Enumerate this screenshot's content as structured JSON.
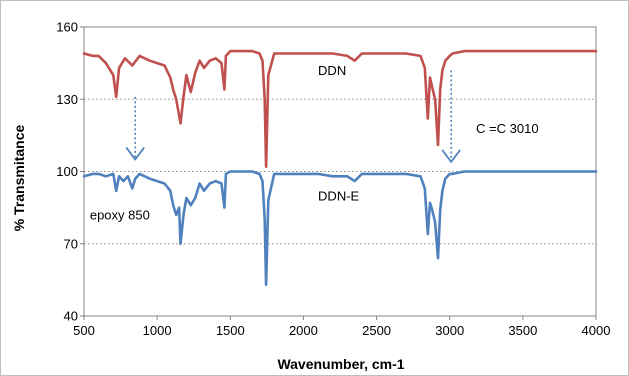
{
  "chart_data": {
    "type": "line",
    "title": "",
    "xlabel": "Wavenumber, cm-1",
    "ylabel": "% Transmitance",
    "xlim": [
      500,
      4000
    ],
    "ylim": [
      40,
      160
    ],
    "x_ticks": [
      500,
      1000,
      1500,
      2000,
      2500,
      3000,
      3500,
      4000
    ],
    "y_ticks": [
      40,
      70,
      100,
      130,
      160
    ],
    "grid": "horizontal dotted",
    "legend": "none",
    "series": [
      {
        "name": "DDN",
        "color": "#c0504d",
        "x": [
          500,
          560,
          600,
          650,
          700,
          720,
          740,
          780,
          830,
          880,
          950,
          1000,
          1050,
          1090,
          1110,
          1130,
          1160,
          1180,
          1200,
          1230,
          1260,
          1290,
          1320,
          1360,
          1400,
          1440,
          1460,
          1470,
          1500,
          1550,
          1600,
          1650,
          1700,
          1720,
          1735,
          1745,
          1760,
          1800,
          1900,
          2000,
          2100,
          2200,
          2300,
          2350,
          2400,
          2500,
          2600,
          2700,
          2800,
          2830,
          2850,
          2865,
          2880,
          2900,
          2920,
          2935,
          2950,
          2970,
          3000,
          3020,
          3100,
          3300,
          3500,
          3700,
          4000
        ],
        "y": [
          149,
          148,
          148,
          145,
          140,
          131,
          143,
          147,
          144,
          148,
          146,
          145,
          144,
          139,
          134,
          130,
          120,
          131,
          140,
          133,
          141,
          146,
          143,
          146,
          147,
          145,
          134,
          148,
          150,
          150,
          150,
          150,
          149,
          146,
          130,
          102,
          140,
          149,
          149,
          149,
          149,
          149,
          148,
          146,
          149,
          149,
          149,
          149,
          148,
          143,
          122,
          139,
          135,
          130,
          111,
          134,
          142,
          146,
          148,
          149,
          150,
          150,
          150,
          150,
          150
        ]
      },
      {
        "name": "DDN-E",
        "color": "#4f81bd",
        "x": [
          500,
          560,
          600,
          650,
          700,
          720,
          740,
          770,
          800,
          830,
          850,
          880,
          950,
          1000,
          1050,
          1090,
          1110,
          1130,
          1150,
          1160,
          1180,
          1200,
          1230,
          1260,
          1290,
          1320,
          1360,
          1400,
          1440,
          1460,
          1470,
          1500,
          1550,
          1600,
          1650,
          1700,
          1720,
          1735,
          1745,
          1760,
          1800,
          1900,
          2000,
          2100,
          2200,
          2300,
          2350,
          2400,
          2500,
          2600,
          2700,
          2800,
          2830,
          2850,
          2865,
          2880,
          2900,
          2920,
          2935,
          2950,
          2970,
          3000,
          3020,
          3100,
          3300,
          3500,
          3700,
          4000
        ],
        "y": [
          98,
          99,
          99,
          98,
          99,
          92,
          98,
          96,
          98,
          93,
          97,
          99,
          97,
          96,
          95,
          92,
          86,
          82,
          85,
          70,
          82,
          89,
          86,
          89,
          95,
          92,
          95,
          96,
          95,
          85,
          99,
          100,
          100,
          100,
          100,
          99,
          96,
          80,
          53,
          88,
          99,
          99,
          99,
          99,
          98,
          98,
          96,
          99,
          99,
          99,
          99,
          98,
          93,
          74,
          87,
          84,
          79,
          64,
          84,
          92,
          97,
          99,
          99,
          100,
          100,
          100,
          100,
          100
        ]
      }
    ],
    "annotations": [
      {
        "text": "DDN",
        "x": 2100,
        "y": 140
      },
      {
        "text": "DDN-E",
        "x": 2100,
        "y": 88
      },
      {
        "text": "C =C 3010",
        "x": 3180,
        "y": 116
      },
      {
        "text": "epoxy 850",
        "x": 540,
        "y": 80
      }
    ],
    "arrows": [
      {
        "x": 850,
        "from_y": 131,
        "to_y": 105
      },
      {
        "x": 3010,
        "from_y": 142,
        "to_y": 104
      }
    ]
  }
}
